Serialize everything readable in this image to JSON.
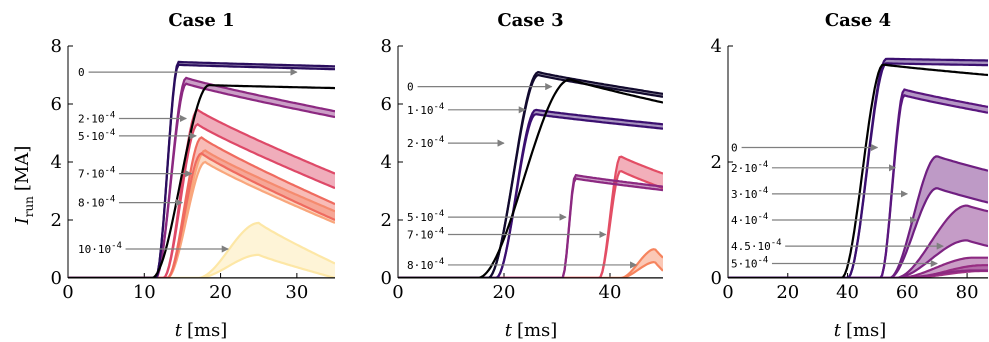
{
  "figure": {
    "ylabel_main": "I",
    "ylabel_sub": "run",
    "ylabel_unit": "[MA]",
    "xlabel_main": "t",
    "xlabel_unit": "[ms]"
  },
  "chart_data": [
    {
      "type": "area",
      "title": "Case 1",
      "xlabel": "t [ms]",
      "ylabel": "I_run [MA]",
      "xlim": [
        0,
        35
      ],
      "ylim": [
        0,
        8
      ],
      "xticks": [
        "0",
        "10",
        "20",
        "30"
      ],
      "yticks": [
        "0",
        "2",
        "4",
        "6",
        "8"
      ],
      "annotation_style": "arrow labels with values",
      "series": [
        {
          "name": "0",
          "color": "#2a0d5e",
          "rise_start": 11.5,
          "rise_end": 14.5,
          "peak": 7.45,
          "end_value": 7.3,
          "band": 0.1,
          "label_y": 7.1,
          "arrow_x": 30
        },
        {
          "name": "2·10^-4",
          "color": "#8c2981",
          "rise_start": 11.5,
          "rise_end": 15.5,
          "peak": 6.9,
          "end_value": 5.75,
          "band": 0.2,
          "label_y": 5.5,
          "arrow_x": 15.5
        },
        {
          "name": "5·10^-4",
          "color": "#de4968",
          "rise_start": 12.5,
          "rise_end": 17.0,
          "peak": 5.8,
          "end_value": 3.6,
          "band": 0.5,
          "label_y": 4.9,
          "arrow_x": 16.8
        },
        {
          "name": "7·10^-4",
          "color": "#ef6b5f",
          "rise_start": 13.0,
          "rise_end": 17.5,
          "peak": 4.85,
          "end_value": 2.55,
          "band": 0.55,
          "label_y": 3.6,
          "arrow_x": 16.2
        },
        {
          "name": "8·10^-4",
          "color": "#f9a67c",
          "rise_start": 13.0,
          "rise_end": 18.0,
          "peak": 4.4,
          "end_value": 2.3,
          "band": 0.4,
          "label_y": 2.6,
          "arrow_x": 15.0
        },
        {
          "name": "10·10^-4",
          "color": "#fde7a6",
          "rise_start": 17.0,
          "rise_end": 25.0,
          "peak": 1.9,
          "end_value": 0.5,
          "band": 1.1,
          "label_y": 1.0,
          "arrow_x": 21.0
        }
      ],
      "reference_line": {
        "name": "black",
        "color": "#000000",
        "rise_start": 11.0,
        "rise_end": 18.5,
        "peak": 6.65,
        "end_value": 6.55
      }
    },
    {
      "type": "area",
      "title": "Case 3",
      "xlabel": "t [ms]",
      "ylabel": "",
      "xlim": [
        0,
        50
      ],
      "ylim": [
        0,
        8
      ],
      "xticks": [
        "0",
        "20",
        "40"
      ],
      "yticks": [
        "0",
        "2",
        "4",
        "6",
        "8"
      ],
      "annotation_style": "arrow labels with values",
      "series": [
        {
          "name": "0",
          "color": "#120a2e",
          "rise_start": 17.0,
          "rise_end": 26.5,
          "peak": 7.1,
          "end_value": 6.35,
          "band": 0.1,
          "label_y": 6.6,
          "arrow_x": 29.0
        },
        {
          "name": "1·10^-4",
          "color": "#3b0f70",
          "rise_start": 18.5,
          "rise_end": 26.0,
          "peak": 5.8,
          "end_value": 5.3,
          "band": 0.15,
          "label_y": 5.8,
          "arrow_x": 24.0
        },
        {
          "name": "5·10^-4",
          "color": "#8c2981",
          "rise_start": 31.0,
          "rise_end": 33.5,
          "peak": 3.55,
          "end_value": 3.15,
          "band": 0.12,
          "label_y": 2.1,
          "arrow_x": 31.7
        },
        {
          "name": "7·10^-4",
          "color": "#e34e65",
          "rise_start": 38.0,
          "rise_end": 42.0,
          "peak": 4.2,
          "end_value": 3.6,
          "band": 0.5,
          "label_y": 1.5,
          "arrow_x": 39.2
        },
        {
          "name": "8·10^-4",
          "color": "#f6845e",
          "rise_start": 42.0,
          "rise_end": 48.5,
          "peak": 1.0,
          "end_value": 0.7,
          "band": 0.45,
          "label_y": 0.45,
          "arrow_x": 45.0
        }
      ],
      "extra_labels": [
        {
          "name": "2·10^-4",
          "label_y": 4.65,
          "arrow_x": 20.0
        }
      ],
      "reference_line": {
        "name": "black",
        "color": "#000000",
        "rise_start": 15.0,
        "rise_end": 32.5,
        "peak": 6.85,
        "end_value": 6.05
      }
    },
    {
      "type": "area",
      "title": "Case 4",
      "xlabel": "t [ms]",
      "ylabel": "",
      "xlim": [
        0,
        87
      ],
      "ylim": [
        0,
        4
      ],
      "xticks": [
        "0",
        "20",
        "40",
        "60",
        "80"
      ],
      "yticks": [
        "0",
        "2",
        "4"
      ],
      "annotation_style": "arrow labels with values",
      "series": [
        {
          "name": "0",
          "color": "#3b0f70",
          "rise_start": 40.0,
          "rise_end": 53.0,
          "peak": 3.78,
          "end_value": 3.75,
          "band": 0.08,
          "label_y": 2.25,
          "arrow_x": 50.0
        },
        {
          "name": "2·10^-4",
          "color": "#5a167e",
          "rise_start": 51.0,
          "rise_end": 59.0,
          "peak": 3.25,
          "end_value": 2.95,
          "band": 0.1,
          "label_y": 1.9,
          "arrow_x": 56.0
        },
        {
          "name": "3·10^-4",
          "color": "#6f1f81",
          "rise_start": 54.0,
          "rise_end": 70.0,
          "peak": 2.1,
          "end_value": 1.85,
          "band": 0.55,
          "label_y": 1.45,
          "arrow_x": 60.0
        },
        {
          "name": "4·10^-4",
          "color": "#7e2482",
          "rise_start": 56.0,
          "rise_end": 80.0,
          "peak": 1.25,
          "end_value": 1.15,
          "band": 0.6,
          "label_y": 1.0,
          "arrow_x": 63.0
        },
        {
          "name": "4.5·10^-4",
          "color": "#8c2981",
          "rise_start": 57.0,
          "rise_end": 82.0,
          "peak": 0.35,
          "end_value": 0.35,
          "band": 0.22,
          "label_y": 0.55,
          "arrow_x": 72.0
        },
        {
          "name": "5·10^-4",
          "color": "#a03284",
          "rise_start": 60.0,
          "rise_end": 85.0,
          "peak": 0.22,
          "end_value": 0.22,
          "band": 0.1,
          "label_y": 0.25,
          "arrow_x": 70.0
        }
      ],
      "reference_line": {
        "name": "black",
        "color": "#000000",
        "rise_start": 38.0,
        "rise_end": 52.0,
        "peak": 3.68,
        "end_value": 3.5
      }
    }
  ]
}
